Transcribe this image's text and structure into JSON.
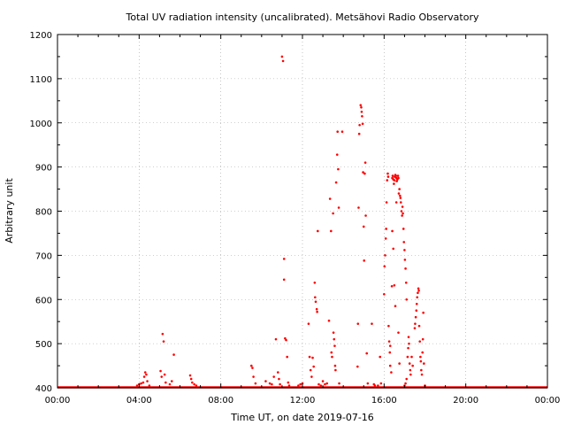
{
  "chart_data": {
    "type": "scatter",
    "title": "Total UV radiation intensity (uncalibrated). Metsähovi Radio Observatory",
    "xlabel": "Time UT, on date 2019-07-16",
    "ylabel": "Arbitrary unit",
    "xlim": [
      0,
      24
    ],
    "ylim": [
      400,
      1200
    ],
    "x_ticks": [
      0,
      4,
      8,
      12,
      16,
      20,
      24
    ],
    "x_tick_labels": [
      "00:00",
      "04:00",
      "08:00",
      "12:00",
      "16:00",
      "20:00",
      "00:00"
    ],
    "y_ticks": [
      400,
      500,
      600,
      700,
      800,
      900,
      1000,
      1100,
      1200
    ],
    "y_tick_labels": [
      "400",
      "500",
      "600",
      "700",
      "800",
      "900",
      "1000",
      "1100",
      "1200"
    ],
    "grid": true,
    "point_color": "#ff0000",
    "baseline": {
      "value": 400,
      "x_range": [
        0,
        24
      ]
    },
    "x_unit": "hours UT",
    "points": [
      [
        3.9,
        405
      ],
      [
        4.0,
        408
      ],
      [
        4.1,
        410
      ],
      [
        4.2,
        412
      ],
      [
        4.25,
        425
      ],
      [
        4.3,
        435
      ],
      [
        4.35,
        430
      ],
      [
        4.4,
        415
      ],
      [
        4.5,
        405
      ],
      [
        5.05,
        438
      ],
      [
        5.1,
        425
      ],
      [
        5.15,
        522
      ],
      [
        5.2,
        505
      ],
      [
        5.25,
        430
      ],
      [
        5.3,
        412
      ],
      [
        5.5,
        408
      ],
      [
        5.7,
        475
      ],
      [
        5.6,
        415
      ],
      [
        6.5,
        428
      ],
      [
        6.55,
        420
      ],
      [
        6.6,
        412
      ],
      [
        6.7,
        408
      ],
      [
        6.8,
        405
      ],
      [
        9.5,
        450
      ],
      [
        9.55,
        445
      ],
      [
        9.6,
        425
      ],
      [
        9.7,
        410
      ],
      [
        10.2,
        415
      ],
      [
        10.4,
        410
      ],
      [
        10.5,
        408
      ],
      [
        10.6,
        425
      ],
      [
        10.7,
        510
      ],
      [
        10.8,
        435
      ],
      [
        10.85,
        420
      ],
      [
        10.9,
        408
      ],
      [
        11.0,
        1150
      ],
      [
        11.05,
        1140
      ],
      [
        11.1,
        692
      ],
      [
        11.1,
        645
      ],
      [
        11.15,
        512
      ],
      [
        11.2,
        508
      ],
      [
        11.25,
        470
      ],
      [
        11.3,
        412
      ],
      [
        11.35,
        405
      ],
      [
        11.8,
        405
      ],
      [
        11.9,
        408
      ],
      [
        12.0,
        410
      ],
      [
        12.3,
        545
      ],
      [
        12.35,
        470
      ],
      [
        12.4,
        440
      ],
      [
        12.45,
        425
      ],
      [
        12.5,
        468
      ],
      [
        12.55,
        448
      ],
      [
        12.6,
        638
      ],
      [
        12.62,
        605
      ],
      [
        12.65,
        595
      ],
      [
        12.7,
        578
      ],
      [
        12.72,
        572
      ],
      [
        12.75,
        755
      ],
      [
        12.8,
        408
      ],
      [
        12.9,
        405
      ],
      [
        13.0,
        415
      ],
      [
        13.1,
        408
      ],
      [
        13.2,
        410
      ],
      [
        13.3,
        552
      ],
      [
        13.35,
        828
      ],
      [
        13.4,
        755
      ],
      [
        13.42,
        480
      ],
      [
        13.45,
        470
      ],
      [
        13.5,
        795
      ],
      [
        13.52,
        525
      ],
      [
        13.55,
        510
      ],
      [
        13.58,
        495
      ],
      [
        13.6,
        450
      ],
      [
        13.62,
        440
      ],
      [
        13.65,
        865
      ],
      [
        13.7,
        928
      ],
      [
        13.72,
        980
      ],
      [
        13.75,
        895
      ],
      [
        13.78,
        808
      ],
      [
        13.8,
        410
      ],
      [
        13.95,
        980
      ],
      [
        14.7,
        448
      ],
      [
        14.72,
        545
      ],
      [
        14.75,
        808
      ],
      [
        14.78,
        975
      ],
      [
        14.8,
        995
      ],
      [
        14.85,
        1040
      ],
      [
        14.88,
        1035
      ],
      [
        14.9,
        1025
      ],
      [
        14.92,
        1015
      ],
      [
        14.95,
        998
      ],
      [
        14.97,
        888
      ],
      [
        15.0,
        765
      ],
      [
        15.02,
        688
      ],
      [
        15.05,
        885
      ],
      [
        15.08,
        910
      ],
      [
        15.1,
        790
      ],
      [
        15.15,
        478
      ],
      [
        15.2,
        410
      ],
      [
        15.4,
        545
      ],
      [
        15.5,
        408
      ],
      [
        15.55,
        405
      ],
      [
        15.7,
        405
      ],
      [
        15.8,
        470
      ],
      [
        15.85,
        410
      ],
      [
        16.0,
        612
      ],
      [
        16.02,
        675
      ],
      [
        16.05,
        700
      ],
      [
        16.08,
        738
      ],
      [
        16.1,
        760
      ],
      [
        16.12,
        820
      ],
      [
        16.15,
        870
      ],
      [
        16.18,
        885
      ],
      [
        16.2,
        878
      ],
      [
        16.22,
        540
      ],
      [
        16.25,
        505
      ],
      [
        16.28,
        480
      ],
      [
        16.3,
        450
      ],
      [
        16.35,
        435
      ],
      [
        16.38,
        630
      ],
      [
        16.4,
        875
      ],
      [
        16.42,
        880
      ],
      [
        16.45,
        872
      ],
      [
        16.48,
        862
      ],
      [
        16.5,
        870
      ],
      [
        16.52,
        878
      ],
      [
        16.55,
        882
      ],
      [
        16.58,
        880
      ],
      [
        16.6,
        875
      ],
      [
        16.62,
        868
      ],
      [
        16.65,
        872
      ],
      [
        16.68,
        880
      ],
      [
        16.7,
        875
      ],
      [
        16.3,
        495
      ],
      [
        16.4,
        755
      ],
      [
        16.45,
        715
      ],
      [
        16.5,
        632
      ],
      [
        16.55,
        585
      ],
      [
        16.6,
        820
      ],
      [
        16.7,
        525
      ],
      [
        16.75,
        455
      ],
      [
        16.72,
        840
      ],
      [
        16.75,
        850
      ],
      [
        16.78,
        835
      ],
      [
        16.8,
        830
      ],
      [
        16.82,
        820
      ],
      [
        16.85,
        800
      ],
      [
        16.88,
        790
      ],
      [
        16.9,
        810
      ],
      [
        16.92,
        795
      ],
      [
        16.95,
        760
      ],
      [
        16.97,
        730
      ],
      [
        17.0,
        712
      ],
      [
        17.02,
        690
      ],
      [
        17.05,
        670
      ],
      [
        17.08,
        638
      ],
      [
        17.1,
        600
      ],
      [
        17.0,
        405
      ],
      [
        17.05,
        410
      ],
      [
        17.1,
        420
      ],
      [
        17.15,
        470
      ],
      [
        17.18,
        490
      ],
      [
        17.2,
        515
      ],
      [
        17.22,
        500
      ],
      [
        17.25,
        455
      ],
      [
        17.28,
        440
      ],
      [
        17.3,
        430
      ],
      [
        17.35,
        470
      ],
      [
        17.4,
        450
      ],
      [
        17.5,
        535
      ],
      [
        17.52,
        545
      ],
      [
        17.55,
        560
      ],
      [
        17.58,
        575
      ],
      [
        17.6,
        590
      ],
      [
        17.62,
        605
      ],
      [
        17.65,
        615
      ],
      [
        17.68,
        625
      ],
      [
        17.7,
        620
      ],
      [
        17.72,
        540
      ],
      [
        17.75,
        505
      ],
      [
        17.78,
        470
      ],
      [
        17.8,
        460
      ],
      [
        17.82,
        440
      ],
      [
        17.85,
        430
      ],
      [
        17.88,
        480
      ],
      [
        17.9,
        510
      ],
      [
        17.92,
        570
      ],
      [
        17.95,
        455
      ],
      [
        18.0,
        405
      ]
    ]
  }
}
